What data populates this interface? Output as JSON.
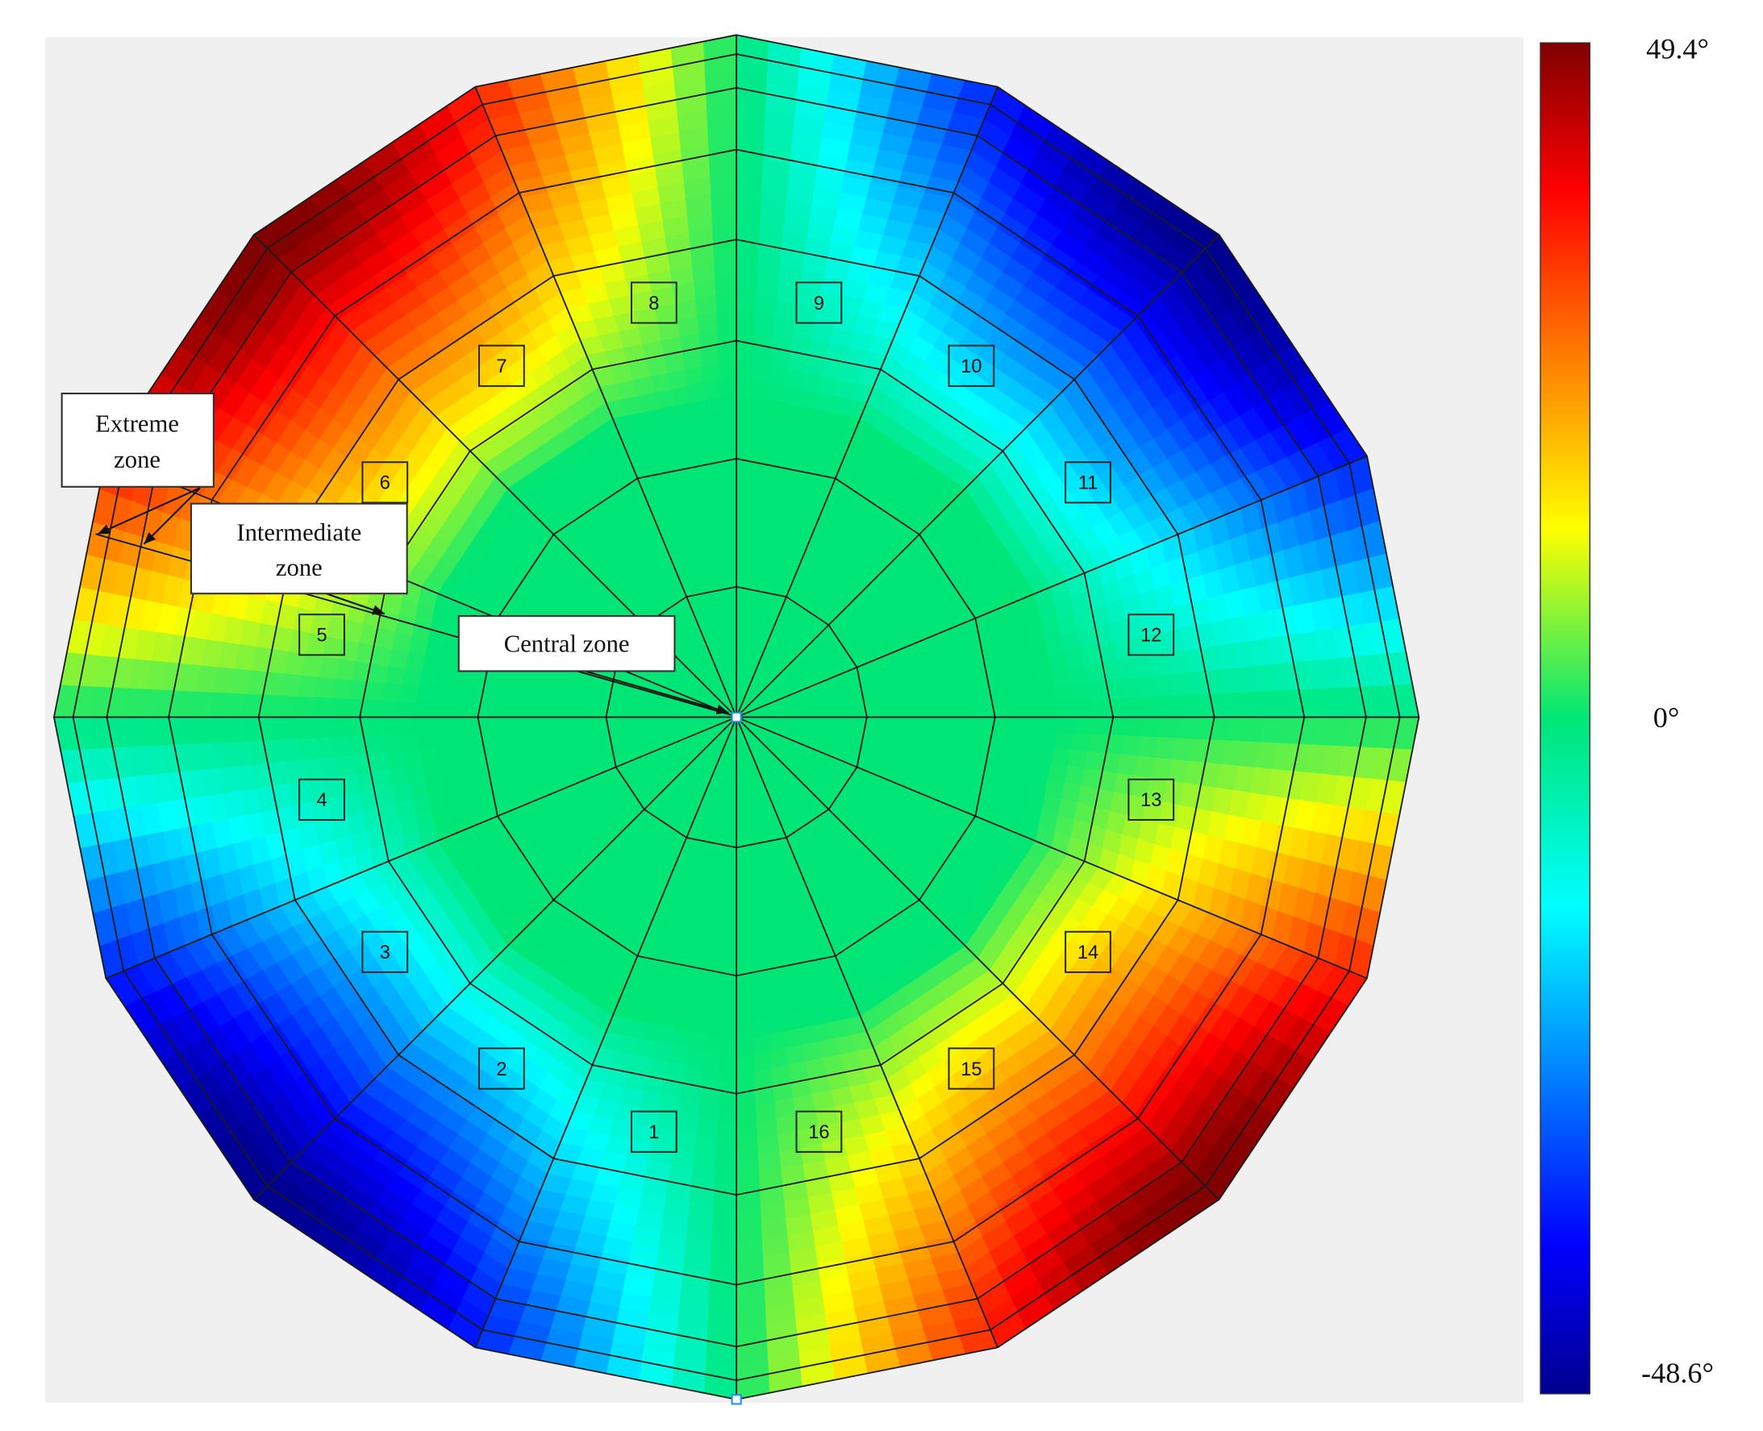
{
  "colorbar": {
    "labels": [
      "49.4°",
      "0°",
      "-48.6°"
    ]
  },
  "annotations": {
    "extreme_zone": [
      "Extreme",
      "zone"
    ],
    "intermediate_zone": [
      "Intermediate",
      "zone"
    ],
    "central_zone": "Central zone"
  },
  "segments": [
    "1",
    "2",
    "3",
    "4",
    "5",
    "6",
    "7",
    "8",
    "9",
    "10",
    "11",
    "12",
    "13",
    "14",
    "15",
    "16"
  ]
}
